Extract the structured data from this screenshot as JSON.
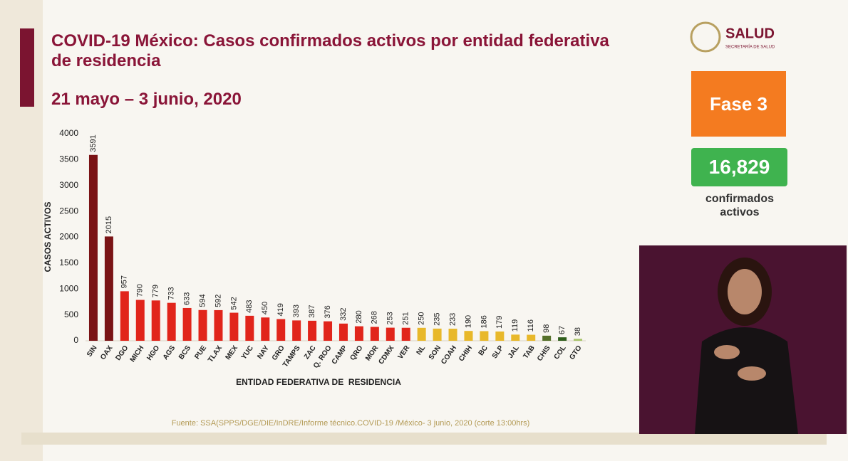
{
  "chart_data": {
    "type": "bar",
    "title": "COVID-19 México: Casos confirmados activos por entidad federativa de residencia",
    "subtitle": "21 mayo – 3 junio, 2020",
    "y_label": "CASOS ACTIVOS",
    "x_label": "ENTIDAD FEDERATIVA DE  RESIDENCIA",
    "categories": [
      "SIN",
      "OAX",
      "DGO",
      "MICH",
      "HGO",
      "AGS",
      "BCS",
      "PUE",
      "TLAX",
      "MEX",
      "YUC",
      "NAY",
      "GRO",
      "TAMPS",
      "ZAC",
      "Q. ROO",
      "CAMP",
      "QRO",
      "MOR",
      "CDMX",
      "VER",
      "NL",
      "SON",
      "COAH",
      "CHIH",
      "BC",
      "SLP",
      "JAL",
      "TAB",
      "CHIS",
      "COL",
      "GTO"
    ],
    "values": [
      3591,
      2015,
      957,
      790,
      779,
      733,
      633,
      594,
      592,
      542,
      483,
      450,
      419,
      393,
      387,
      376,
      332,
      280,
      268,
      253,
      251,
      250,
      235,
      233,
      190,
      186,
      179,
      119,
      116,
      98,
      67,
      38
    ],
    "colors": [
      "#7a1315",
      "#7a1315",
      "#e1251b",
      "#e1251b",
      "#e1251b",
      "#e1251b",
      "#e1251b",
      "#e1251b",
      "#e1251b",
      "#e1251b",
      "#e1251b",
      "#e1251b",
      "#e1251b",
      "#e1251b",
      "#e1251b",
      "#e1251b",
      "#e1251b",
      "#e1251b",
      "#e1251b",
      "#e1251b",
      "#e1251b",
      "#e8b82a",
      "#e8b82a",
      "#e8b82a",
      "#e8b82a",
      "#e8b82a",
      "#e8b82a",
      "#e8b82a",
      "#e8b82a",
      "#55702a",
      "#2f5e1c",
      "#a9c56c"
    ],
    "ylim": [
      0,
      4000
    ],
    "yticks": [
      0,
      500,
      1000,
      1500,
      2000,
      2500,
      3000,
      3500,
      4000
    ],
    "source": "Fuente: SSA(SPPS/DGE/DIE/InDRE/Informe técnico.COVID-19 /México- 3 junio, 2020 (corte 13:00hrs)"
  },
  "sidebar": {
    "logo": "SALUD",
    "logo_sub": "SECRETARÍA DE SALUD",
    "phase": "Fase 3",
    "total": "16,829",
    "total_label": "confirmados activos"
  }
}
